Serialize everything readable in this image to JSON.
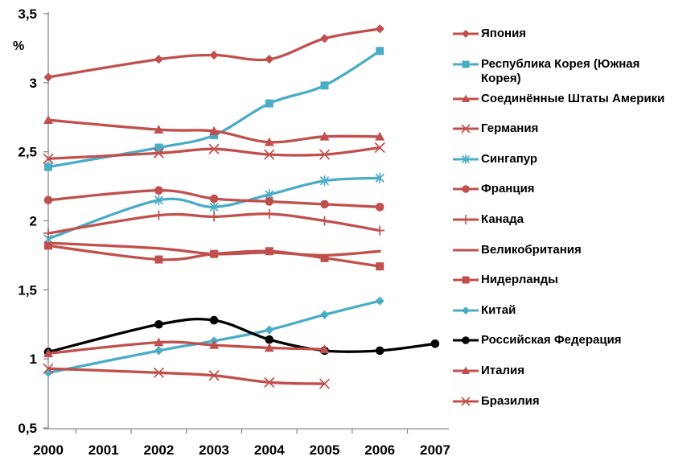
{
  "chart_data": {
    "type": "line",
    "title": "",
    "ylabel": "%",
    "xlabel": "",
    "grid": false,
    "legend_position": "right",
    "ylim": [
      0.5,
      3.5
    ],
    "ytick_step": 0.5,
    "ytick_labels": [
      "3,5",
      "3",
      "2,5",
      "2",
      "1,5",
      "1",
      "0,5"
    ],
    "categories": [
      "2000",
      "2001",
      "2002",
      "2003",
      "2004",
      "2005",
      "2006",
      "2007"
    ],
    "series": [
      {
        "name": "Япония",
        "color": "#C0504D",
        "marker": "diamond",
        "values": [
          3.04,
          null,
          3.17,
          3.2,
          3.17,
          3.32,
          3.39,
          null
        ]
      },
      {
        "name": "Республика Корея (Южная Корея)",
        "color": "#4BACC6",
        "marker": "square",
        "values": [
          2.39,
          null,
          2.53,
          2.62,
          2.85,
          2.98,
          3.23,
          null
        ]
      },
      {
        "name": "Соединённые Штаты Америки",
        "color": "#C0504D",
        "marker": "triangle",
        "values": [
          2.73,
          null,
          2.66,
          2.65,
          2.57,
          2.61,
          2.61,
          null
        ]
      },
      {
        "name": "Германия",
        "color": "#C0504D",
        "marker": "x",
        "values": [
          2.45,
          null,
          2.49,
          2.52,
          2.48,
          2.48,
          2.53,
          null
        ]
      },
      {
        "name": "Сингапур",
        "color": "#4BACC6",
        "marker": "asterisk",
        "values": [
          1.87,
          null,
          2.15,
          2.1,
          2.19,
          2.29,
          2.31,
          null
        ]
      },
      {
        "name": "Франция",
        "color": "#C0504D",
        "marker": "circle",
        "values": [
          2.15,
          null,
          2.22,
          2.16,
          2.14,
          2.12,
          2.1,
          null
        ]
      },
      {
        "name": "Канада",
        "color": "#C0504D",
        "marker": "plus",
        "values": [
          1.91,
          null,
          2.04,
          2.03,
          2.05,
          2.0,
          1.93,
          null
        ]
      },
      {
        "name": "Великобритания",
        "color": "#C0504D",
        "marker": "none",
        "values": [
          1.84,
          null,
          1.8,
          1.76,
          1.77,
          1.75,
          1.78,
          null
        ]
      },
      {
        "name": "Нидерланды",
        "color": "#C0504D",
        "marker": "square",
        "values": [
          1.82,
          null,
          1.72,
          1.76,
          1.78,
          1.73,
          1.67,
          null
        ]
      },
      {
        "name": "Китай",
        "color": "#4BACC6",
        "marker": "diamond",
        "values": [
          0.9,
          null,
          1.06,
          1.13,
          1.21,
          1.32,
          1.42,
          null
        ]
      },
      {
        "name": "Российская Федерация",
        "color": "#000000",
        "marker": "circle",
        "values": [
          1.05,
          null,
          1.25,
          1.28,
          1.14,
          1.06,
          1.06,
          1.11
        ]
      },
      {
        "name": "Италия",
        "color": "#C0504D",
        "marker": "triangle",
        "values": [
          1.04,
          null,
          1.12,
          1.1,
          1.08,
          1.07,
          null,
          null
        ]
      },
      {
        "name": "Бразилия",
        "color": "#C0504D",
        "marker": "x",
        "values": [
          0.93,
          null,
          0.9,
          0.88,
          0.83,
          0.82,
          null,
          null
        ]
      }
    ],
    "axis_color": "#8C8C8C",
    "text_color": "#000000"
  }
}
